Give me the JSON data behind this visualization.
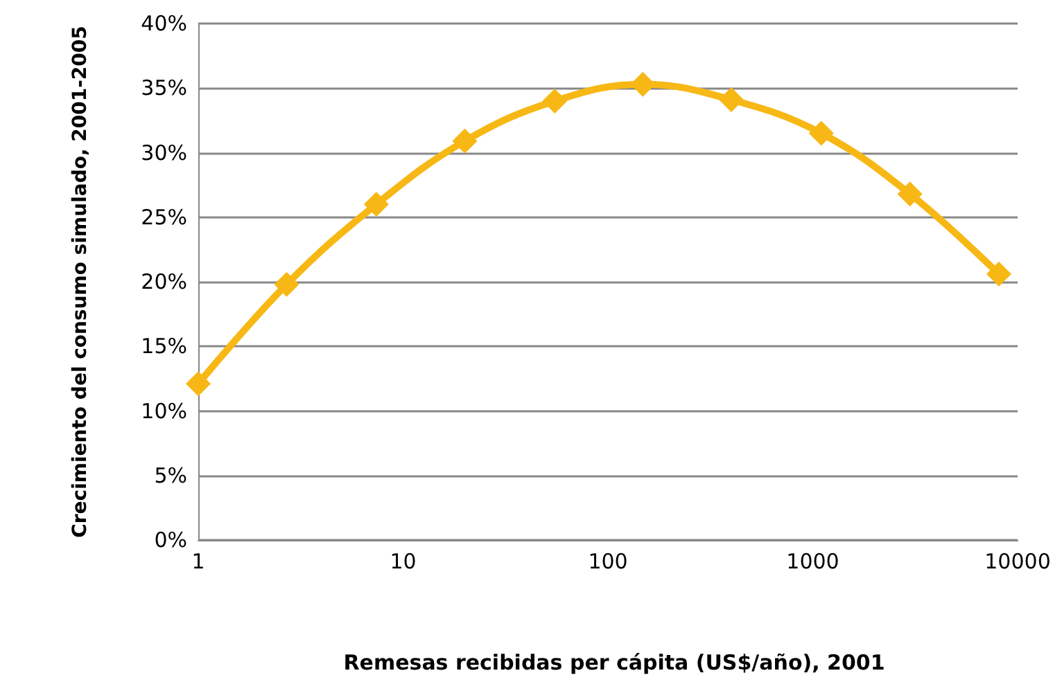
{
  "chart_data": {
    "type": "line",
    "xlabel": "Remesas recibidas per cápita (US$/año), 2001",
    "ylabel": "Crecimiento del consumo simulado, 2001-2005",
    "x": [
      1,
      2.7,
      7.4,
      20,
      55,
      148,
      400,
      1100,
      2980,
      8100
    ],
    "series": [
      {
        "color": "#f7b815",
        "values": [
          12.1,
          19.8,
          26.0,
          30.9,
          34.0,
          35.3,
          34.1,
          31.5,
          26.8,
          20.6
        ]
      }
    ],
    "log": "x",
    "xlim": [
      1,
      10000
    ],
    "xticks": [
      1,
      10,
      100,
      1000,
      10000
    ],
    "ylim": [
      0,
      40
    ],
    "yticks": [
      {
        "value": 0,
        "label": "0%"
      },
      {
        "value": 5,
        "label": "5%"
      },
      {
        "value": 10,
        "label": "10%"
      },
      {
        "value": 15,
        "label": "15%"
      },
      {
        "value": 20,
        "label": "20%"
      },
      {
        "value": 25,
        "label": "25%"
      },
      {
        "value": 30,
        "label": "30%"
      },
      {
        "value": 35,
        "label": "35%"
      },
      {
        "value": 40,
        "label": "40%"
      }
    ],
    "grid": "y",
    "marker": "diamond",
    "line_style": "solid"
  }
}
